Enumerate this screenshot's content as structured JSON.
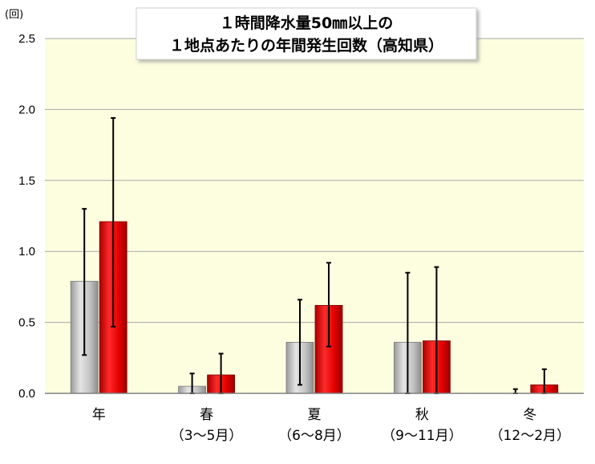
{
  "chart_data": {
    "type": "bar",
    "title_lines": [
      "１時間降水量50㎜以上の",
      "１地点あたりの年間発生回数（高知県）"
    ],
    "y_unit": "(回)",
    "ylim": [
      0,
      2.5
    ],
    "y_ticks": [
      "0.0",
      "0.5",
      "1.0",
      "1.5",
      "2.0",
      "2.5"
    ],
    "grid": true,
    "categories": [
      {
        "label": "年",
        "sublabel": ""
      },
      {
        "label": "春",
        "sublabel": "（3～5月）"
      },
      {
        "label": "夏",
        "sublabel": "（6～8月）"
      },
      {
        "label": "秋",
        "sublabel": "（9～11月）"
      },
      {
        "label": "冬",
        "sublabel": "（12～2月）"
      }
    ],
    "series": [
      {
        "color": "#c0c0c0",
        "values": [
          0.79,
          0.05,
          0.36,
          0.36,
          0.0
        ],
        "error_low": [
          0.27,
          0.0,
          0.06,
          0.0,
          0.0
        ],
        "error_high": [
          1.3,
          0.14,
          0.66,
          0.85,
          0.03
        ]
      },
      {
        "color": "#e00000",
        "values": [
          1.21,
          0.13,
          0.62,
          0.37,
          0.06
        ],
        "error_low": [
          0.47,
          0.0,
          0.33,
          0.0,
          0.0
        ],
        "error_high": [
          1.94,
          0.28,
          0.92,
          0.89,
          0.17
        ]
      }
    ],
    "colors": {
      "plot_background": "#fdfde0",
      "gridline": "#a8a8a8",
      "error_bar": "#000000"
    }
  }
}
